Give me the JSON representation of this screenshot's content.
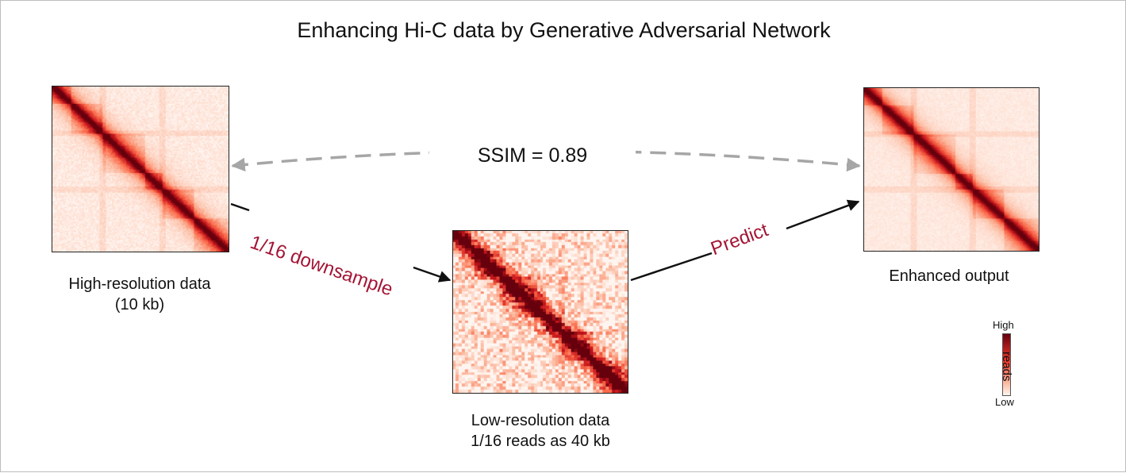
{
  "title": "Enhancing Hi-C data by Generative Adversarial Network",
  "panels": {
    "high": {
      "caption_line1": "High-resolution data",
      "caption_line2": "(10 kb)"
    },
    "low": {
      "caption_line1": "Low-resolution data",
      "caption_line2": "1/16 reads as 40 kb"
    },
    "enhanced": {
      "caption": "Enhanced output"
    }
  },
  "arrows": {
    "downsample_label": "1/16 downsample",
    "predict_label": "Predict",
    "ssim_label": "SSIM = 0.89"
  },
  "colorbar": {
    "high_label": "High",
    "low_label": "Low",
    "axis_label": "reads"
  },
  "colors": {
    "accent_text": "#a31535",
    "heatmap_high": "#67000d",
    "heatmap_low": "#fff5f0",
    "dashed_arrow": "#a6a6a6",
    "solid_arrow": "#111111"
  }
}
